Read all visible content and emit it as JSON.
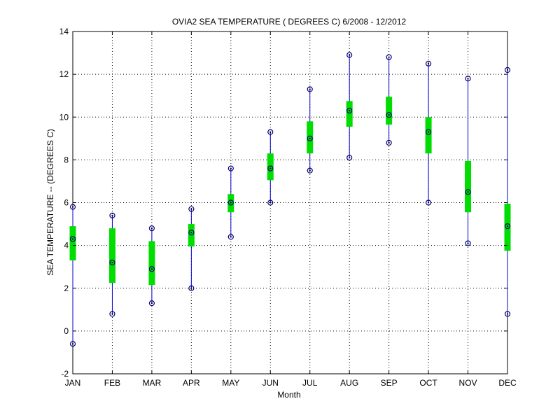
{
  "chart_data": {
    "type": "boxplot",
    "title": "OVIA2  SEA TEMPERATURE ( DEGREES C) 6/2008 - 12/2012",
    "xlabel": "Month",
    "ylabel": "SEA TEMPERATURE -- (DEGREES C)",
    "ylim": [
      -2,
      14
    ],
    "yticks": [
      "-2",
      "0",
      "2",
      "4",
      "6",
      "8",
      "10",
      "12",
      "14"
    ],
    "grid": true,
    "categories": [
      "JAN",
      "FEB",
      "MAR",
      "APR",
      "MAY",
      "JUN",
      "JUL",
      "AUG",
      "SEP",
      "OCT",
      "NOV",
      "DEC"
    ],
    "series": [
      {
        "min": [
          -0.6,
          0.8,
          1.3,
          2.0,
          4.4,
          6.0,
          7.5,
          8.1,
          8.8,
          6.0,
          4.1,
          0.8
        ],
        "q1": [
          3.3,
          2.25,
          2.15,
          3.95,
          5.55,
          7.05,
          8.3,
          9.55,
          9.65,
          8.3,
          5.55,
          3.75
        ],
        "median": [
          4.3,
          3.2,
          2.9,
          4.6,
          6.0,
          7.6,
          9.0,
          10.3,
          10.1,
          9.3,
          6.5,
          4.9
        ],
        "q3": [
          4.9,
          4.8,
          4.2,
          5.0,
          6.4,
          8.3,
          9.8,
          10.75,
          10.95,
          10.0,
          7.95,
          5.95
        ],
        "max": [
          5.8,
          5.4,
          4.8,
          5.7,
          7.6,
          9.3,
          11.3,
          12.9,
          12.8,
          12.5,
          11.8,
          12.2
        ]
      }
    ],
    "colors": {
      "whisker": "#0000cc",
      "box": "#00dd00",
      "marker": "#000080",
      "grid": "#000000",
      "axis": "#000000"
    }
  }
}
